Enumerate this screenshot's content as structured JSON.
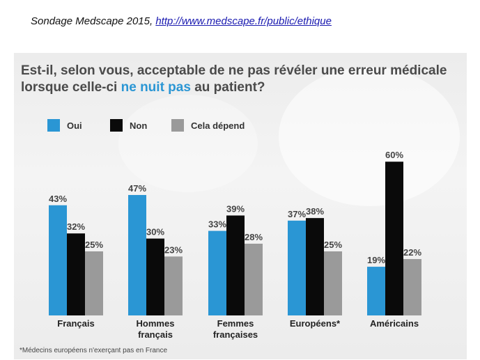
{
  "caption": {
    "text": "Sondage Medscape 2015,",
    "link": "http://www.medscape.fr/public/ethique"
  },
  "title": {
    "line1": "Est-il, selon vous, acceptable de ne pas révéler une erreur médicale",
    "line2_pre": "lorsque celle-ci ",
    "line2_highlight": "ne nuit pas",
    "line2_post": " au patient?"
  },
  "footnote": "*Médecins européens n'exerçant pas en France",
  "colors": {
    "oui": "#2a96d4",
    "non": "#0a0a0a",
    "depend": "#9a9a9a",
    "highlight": "#2a96d4"
  },
  "chart_data": {
    "type": "bar",
    "title": "Est-il, selon vous, acceptable de ne pas révéler une erreur médicale lorsque celle-ci ne nuit pas au patient?",
    "categories": [
      [
        "Français"
      ],
      [
        "Hommes",
        "français"
      ],
      [
        "Femmes",
        "françaises"
      ],
      [
        "Européens*"
      ],
      [
        "Américains"
      ]
    ],
    "series": [
      {
        "name": "Oui",
        "color": "#2a96d4",
        "values": [
          43,
          47,
          33,
          37,
          19
        ]
      },
      {
        "name": "Non",
        "color": "#0a0a0a",
        "values": [
          32,
          30,
          39,
          38,
          60
        ]
      },
      {
        "name": "Cela dépend",
        "color": "#9a9a9a",
        "values": [
          25,
          23,
          28,
          25,
          22
        ]
      }
    ],
    "value_suffix": "%",
    "ylim": [
      0,
      60
    ],
    "xlabel": "",
    "ylabel": "",
    "legend": "top-left"
  }
}
